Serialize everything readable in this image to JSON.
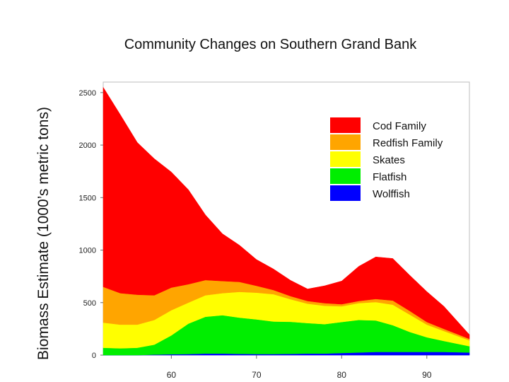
{
  "chart_data": {
    "type": "area",
    "stacked": true,
    "title": "Community Changes on Southern Grand Bank",
    "xlabel": "",
    "ylabel": "Biomass Estimate (1000’s metric tons)",
    "xlim": [
      52,
      95
    ],
    "ylim": [
      0,
      2600
    ],
    "yticks": [
      0,
      500,
      1000,
      1500,
      2000,
      2500
    ],
    "xticks": [
      60,
      70,
      80,
      90
    ],
    "legend_position": "top-right",
    "x": [
      52,
      54,
      56,
      58,
      60,
      62,
      64,
      66,
      68,
      70,
      72,
      74,
      76,
      78,
      80,
      82,
      84,
      86,
      88,
      90,
      92,
      95
    ],
    "series": [
      {
        "name": "Wolffish",
        "color": "#0000ff",
        "values": [
          0,
          0,
          0,
          5,
          8,
          10,
          15,
          15,
          12,
          10,
          10,
          12,
          15,
          15,
          20,
          25,
          30,
          30,
          30,
          30,
          30,
          25
        ]
      },
      {
        "name": "Flatfish",
        "color": "#00ee00",
        "values": [
          70,
          65,
          70,
          95,
          180,
          290,
          350,
          365,
          345,
          330,
          310,
          305,
          290,
          280,
          295,
          310,
          300,
          255,
          190,
          140,
          105,
          60
        ]
      },
      {
        "name": "Skates",
        "color": "#ffff00",
        "values": [
          240,
          225,
          220,
          235,
          240,
          200,
          205,
          210,
          245,
          255,
          260,
          215,
          185,
          175,
          150,
          160,
          175,
          195,
          165,
          120,
          95,
          55
        ]
      },
      {
        "name": "Redfish Family",
        "color": "#ffa500",
        "values": [
          340,
          300,
          285,
          235,
          215,
          175,
          145,
          115,
          95,
          65,
          40,
          30,
          25,
          25,
          20,
          20,
          30,
          40,
          35,
          25,
          20,
          15
        ]
      },
      {
        "name": "Cod Family",
        "color": "#ff0000",
        "values": [
          1900,
          1700,
          1450,
          1300,
          1100,
          900,
          620,
          450,
          350,
          250,
          200,
          150,
          115,
          165,
          220,
          330,
          400,
          400,
          340,
          290,
          215,
          40
        ]
      }
    ]
  }
}
